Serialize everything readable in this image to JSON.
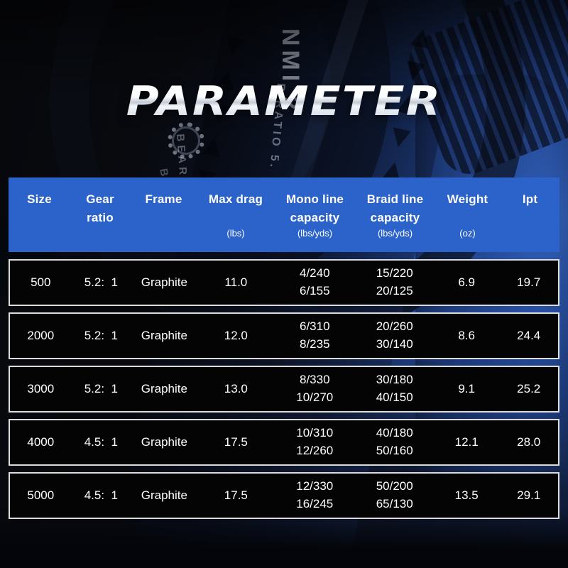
{
  "title": {
    "text": "PARAMETER"
  },
  "background": {
    "photo_fragments": {
      "nmi": "NMI 2",
      "ratio": "R RATIO 5.",
      "bearin": "BEARIN",
      "ba": "BA"
    }
  },
  "colors": {
    "header_bg": "#2b63ca",
    "row_bg": "#040404",
    "row_border": "#dcdcdc",
    "accent_blue": "#2d5cb7",
    "title_chrome_top": "#ffffff",
    "title_chrome_bottom": "#a9b2c1"
  },
  "table": {
    "columns": [
      {
        "label": "Size",
        "unit": ""
      },
      {
        "label": "Gear ratio",
        "unit": ""
      },
      {
        "label": "Frame",
        "unit": ""
      },
      {
        "label": "Max drag",
        "unit": "(lbs)"
      },
      {
        "label": "Mono line capacity",
        "unit": "(lbs/yds)"
      },
      {
        "label": "Braid line capacity",
        "unit": "(lbs/yds)"
      },
      {
        "label": "Weight",
        "unit": "(oz)"
      },
      {
        "label": "Ipt",
        "unit": ""
      }
    ],
    "rows": [
      {
        "size": "500",
        "gear_ratio": "5.2:  1",
        "frame": "Graphite",
        "max_drag": "11.0",
        "mono": [
          "4/240",
          "6/155"
        ],
        "braid": [
          "15/220",
          "20/125"
        ],
        "weight": "6.9",
        "ipt": "19.7"
      },
      {
        "size": "2000",
        "gear_ratio": "5.2:  1",
        "frame": "Graphite",
        "max_drag": "12.0",
        "mono": [
          "6/310",
          "8/235"
        ],
        "braid": [
          "20/260",
          "30/140"
        ],
        "weight": "8.6",
        "ipt": "24.4"
      },
      {
        "size": "3000",
        "gear_ratio": "5.2:  1",
        "frame": "Graphite",
        "max_drag": "13.0",
        "mono": [
          "8/330",
          "10/270"
        ],
        "braid": [
          "30/180",
          "40/150"
        ],
        "weight": "9.1",
        "ipt": "25.2"
      },
      {
        "size": "4000",
        "gear_ratio": "4.5:  1",
        "frame": "Graphite",
        "max_drag": "17.5",
        "mono": [
          "10/310",
          "12/260"
        ],
        "braid": [
          "40/180",
          "50/160"
        ],
        "weight": "12.1",
        "ipt": "28.0"
      },
      {
        "size": "5000",
        "gear_ratio": "4.5:  1",
        "frame": "Graphite",
        "max_drag": "17.5",
        "mono": [
          "12/330",
          "16/245"
        ],
        "braid": [
          "50/200",
          "65/130"
        ],
        "weight": "13.5",
        "ipt": "29.1"
      }
    ]
  },
  "chart_data": {
    "type": "table",
    "title": "PARAMETER",
    "columns": [
      "Size",
      "Gear ratio",
      "Frame",
      "Max drag (lbs)",
      "Mono line capacity (lbs/yds)",
      "Braid line capacity (lbs/yds)",
      "Weight (oz)",
      "Ipt"
    ],
    "rows": [
      [
        "500",
        "5.2:1",
        "Graphite",
        "11.0",
        "4/240, 6/155",
        "15/220, 20/125",
        "6.9",
        "19.7"
      ],
      [
        "2000",
        "5.2:1",
        "Graphite",
        "12.0",
        "6/310, 8/235",
        "20/260, 30/140",
        "8.6",
        "24.4"
      ],
      [
        "3000",
        "5.2:1",
        "Graphite",
        "13.0",
        "8/330, 10/270",
        "30/180, 40/150",
        "9.1",
        "25.2"
      ],
      [
        "4000",
        "4.5:1",
        "Graphite",
        "17.5",
        "10/310, 12/260",
        "40/180, 50/160",
        "12.1",
        "28.0"
      ],
      [
        "5000",
        "4.5:1",
        "Graphite",
        "17.5",
        "12/330, 16/245",
        "50/200, 65/130",
        "13.5",
        "29.1"
      ]
    ]
  }
}
